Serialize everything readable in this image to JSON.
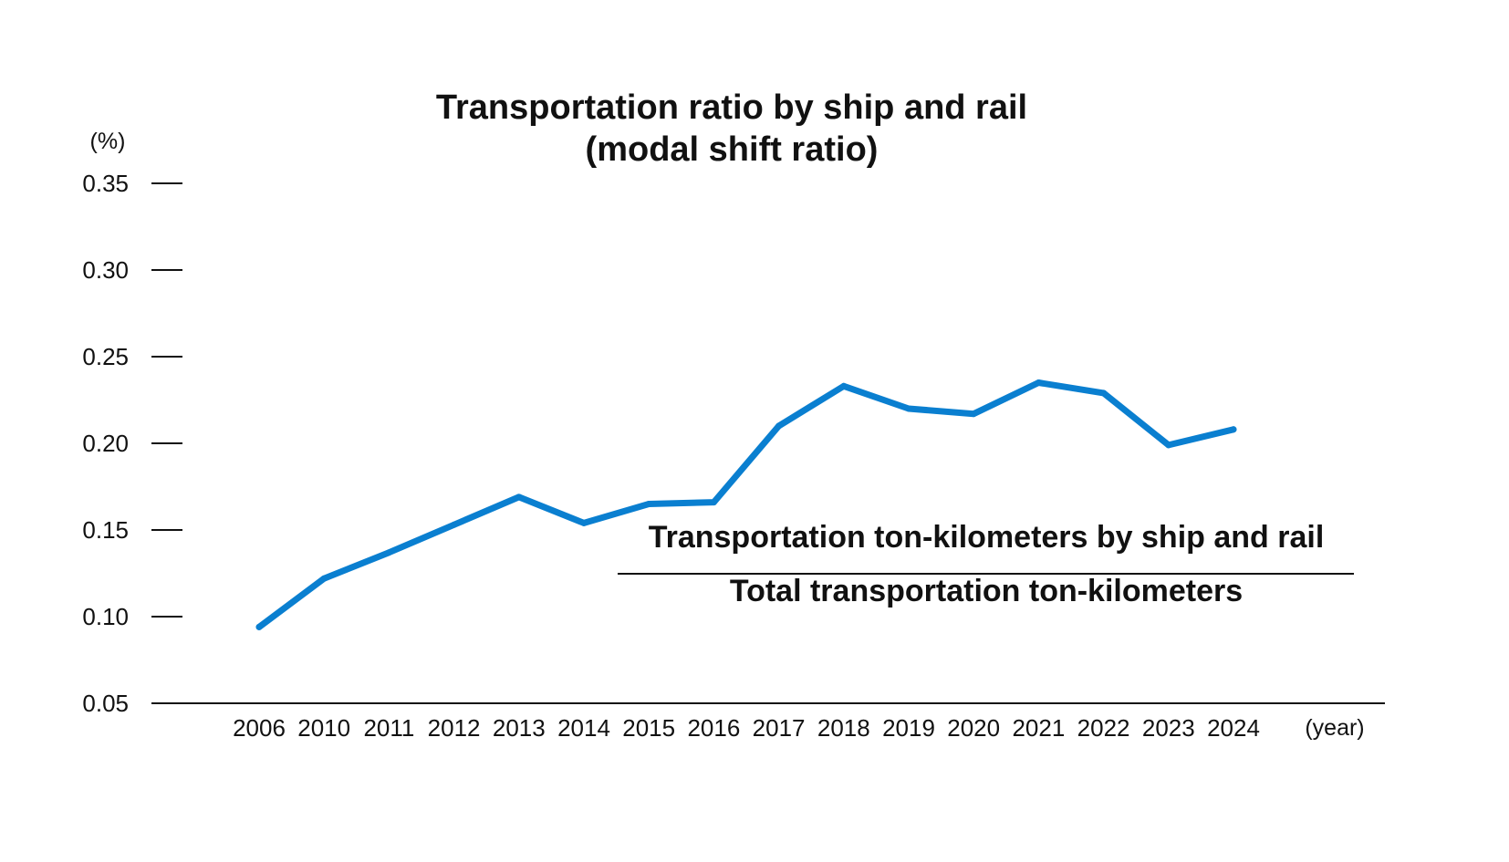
{
  "chart_data": {
    "type": "line",
    "title": [
      "Transportation ratio by ship and rail",
      "(modal shift ratio)"
    ],
    "y_unit": "(%)",
    "x_unit": "(year)",
    "ylim": [
      0.05,
      0.35
    ],
    "y_ticks": [
      "0.35",
      "0.30",
      "0.25",
      "0.20",
      "0.15",
      "0.10",
      "0.05"
    ],
    "categories": [
      "2006",
      "2010",
      "2011",
      "2012",
      "2013",
      "2014",
      "2015",
      "2016",
      "2017",
      "2018",
      "2019",
      "2020",
      "2021",
      "2022",
      "2023",
      "2024"
    ],
    "series": [
      {
        "values": [
          0.094,
          0.122,
          0.137,
          0.153,
          0.169,
          0.154,
          0.165,
          0.166,
          0.21,
          0.233,
          0.22,
          0.217,
          0.235,
          0.229,
          0.199,
          0.208
        ],
        "color": "#0a7fd0"
      }
    ],
    "annotation": {
      "numerator": "Transportation ton-kilometers by ship and rail",
      "denominator": "Total transportation ton-kilometers"
    },
    "grid": false
  }
}
